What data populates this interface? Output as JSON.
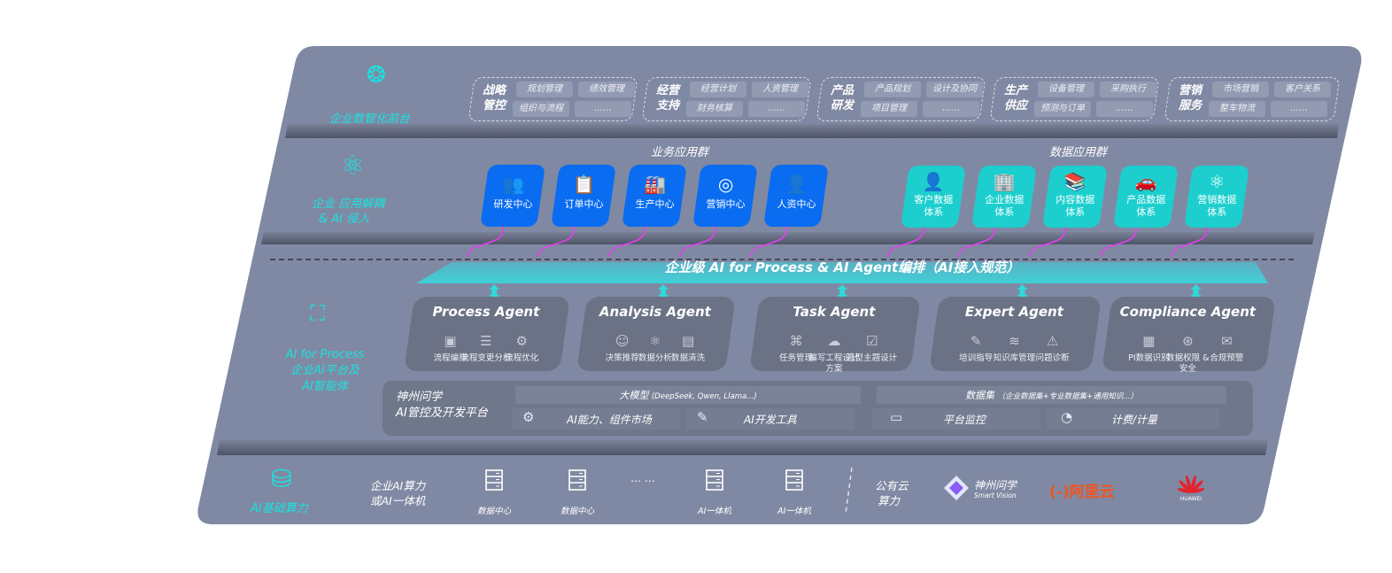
{
  "colors": {
    "panel": "#8089a3",
    "accent_cyan": "#19e3e0",
    "business_tile": "#0a6cf0",
    "data_tile": "#1ccfce",
    "arrow_magenta": "#e83cf0",
    "card": "#6b7285"
  },
  "layers": {
    "front": {
      "icon": "brain-icon",
      "label": "企业数智化前台"
    },
    "apps": {
      "icon": "molecule-icon",
      "label_line1": "企业 应用解耦",
      "label_line2": "& AI 侵入"
    },
    "ai": {
      "icon": "face-scan-icon",
      "label_line1": "AI for Process",
      "label_line2": "企业AI平台及",
      "label_line3": "AI智能体"
    },
    "infra": {
      "icon": "database-icon",
      "label": "AI基础算力"
    }
  },
  "front_groups": [
    {
      "title1": "战略",
      "title2": "管控",
      "chips": [
        "规划管理",
        "绩效管理",
        "组织与流程",
        "……"
      ]
    },
    {
      "title1": "经营",
      "title2": "支持",
      "chips": [
        "经营计划",
        "人资管理",
        "财务核算",
        "……"
      ]
    },
    {
      "title1": "产品",
      "title2": "研发",
      "chips": [
        "产品规划",
        "设计及协同",
        "项目管理",
        "……"
      ]
    },
    {
      "title1": "生产",
      "title2": "供应",
      "chips": [
        "设备管理",
        "采购执行",
        "预测与订单",
        "……"
      ]
    },
    {
      "title1": "营销",
      "title2": "服务",
      "chips": [
        "市场营销",
        "客户关系",
        "整车物流",
        "……"
      ]
    }
  ],
  "business_apps": {
    "title": "业务应用群",
    "items": [
      {
        "icon": "users-icon",
        "glyph": "👥",
        "label": "研发中心"
      },
      {
        "icon": "clipboard-icon",
        "glyph": "📋",
        "label": "订单中心"
      },
      {
        "icon": "factory-icon",
        "glyph": "🏭",
        "label": "生产中心"
      },
      {
        "icon": "target-icon",
        "glyph": "◎",
        "label": "营销中心"
      },
      {
        "icon": "person-icon",
        "glyph": "👤",
        "label": "人资中心"
      }
    ]
  },
  "data_apps": {
    "title": "数据应用群",
    "items": [
      {
        "icon": "customer-icon",
        "glyph": "👤",
        "label1": "客户数据",
        "label2": "体系"
      },
      {
        "icon": "building-icon",
        "glyph": "🏢",
        "label1": "企业数据",
        "label2": "体系"
      },
      {
        "icon": "books-icon",
        "glyph": "📚",
        "label1": "内容数据",
        "label2": "体系"
      },
      {
        "icon": "car-icon",
        "glyph": "🚗",
        "label1": "产品数据",
        "label2": "体系"
      },
      {
        "icon": "atom-icon",
        "glyph": "⚛",
        "label1": "营销数据",
        "label2": "体系"
      }
    ]
  },
  "orchestration_band": "企业级 AI for Process & AI Agent编排（AI接入规范）",
  "agents": [
    {
      "title": "Process Agent",
      "features": [
        {
          "icon": "chart-icon",
          "glyph": "▣",
          "label": "流程编排"
        },
        {
          "icon": "list-icon",
          "glyph": "☰",
          "label": "流程变更分析"
        },
        {
          "icon": "optimize-icon",
          "glyph": "⚙",
          "label": "流程优化"
        }
      ]
    },
    {
      "title": "Analysis Agent",
      "features": [
        {
          "icon": "head-icon",
          "glyph": "☺",
          "label": "决策推荐"
        },
        {
          "icon": "atom-icon",
          "glyph": "⚛",
          "label": "数据分析"
        },
        {
          "icon": "clean-icon",
          "glyph": "▤",
          "label": "数据清洗"
        }
      ]
    },
    {
      "title": "Task Agent",
      "features": [
        {
          "icon": "network-icon",
          "glyph": "⌘",
          "label": "任务管理"
        },
        {
          "icon": "cloud-icon",
          "glyph": "☁",
          "label": "编写工程设计方案"
        },
        {
          "icon": "checklist-icon",
          "glyph": "☑",
          "label": "造型主题设计"
        }
      ]
    },
    {
      "title": "Expert Agent",
      "features": [
        {
          "icon": "wand-icon",
          "glyph": "✎",
          "label": "培训指导"
        },
        {
          "icon": "layers-icon",
          "glyph": "≋",
          "label": "知识库管理"
        },
        {
          "icon": "diagnose-icon",
          "glyph": "⚠",
          "label": "问题诊断"
        }
      ]
    },
    {
      "title": "Compliance Agent",
      "features": [
        {
          "icon": "id-card-icon",
          "glyph": "▦",
          "label": "PI数据识别"
        },
        {
          "icon": "lock-icon",
          "glyph": "⊛",
          "label": "数据权限 &",
          "label2": "安全"
        },
        {
          "icon": "alert-icon",
          "glyph": "✉",
          "label": "合规预警"
        }
      ]
    }
  ],
  "platform": {
    "name1": "神州问学",
    "name2": "AI管控及开发平台",
    "llm_label": "大模型",
    "llm_note": "(DeepSeek, Qwen, Llama...)",
    "dataset_label": "数据集",
    "dataset_note": "（企业数据集+专业数据集+通用知识...）",
    "tools": [
      {
        "icon": "market-icon",
        "glyph": "⚙",
        "label": "AI能力、组件市场"
      },
      {
        "icon": "dev-tool-icon",
        "glyph": "✎",
        "label": "AI开发工具"
      },
      {
        "icon": "monitor-icon",
        "glyph": "▭",
        "label": "平台监控"
      },
      {
        "icon": "gauge-icon",
        "glyph": "◔",
        "label": "计费/计量"
      }
    ]
  },
  "infra": {
    "onprem_line1": "企业AI算力",
    "onprem_line2": "或AI一体机",
    "servers": [
      {
        "icon": "server-icon",
        "label": "数据中心"
      },
      {
        "icon": "server-icon",
        "label": "数据中心"
      },
      {
        "icon": "ellipsis-icon",
        "label": "… …"
      },
      {
        "icon": "server-icon",
        "label": "AI一体机"
      },
      {
        "icon": "server-icon",
        "label": "AI一体机"
      }
    ],
    "cloud_line1": "公有云",
    "cloud_line2": "算力",
    "vendors": [
      {
        "name": "神州问学",
        "sub": "Smart Vision"
      },
      {
        "name": "阿里云",
        "mark": "(-)"
      },
      {
        "name": "HUAWEI"
      }
    ]
  }
}
